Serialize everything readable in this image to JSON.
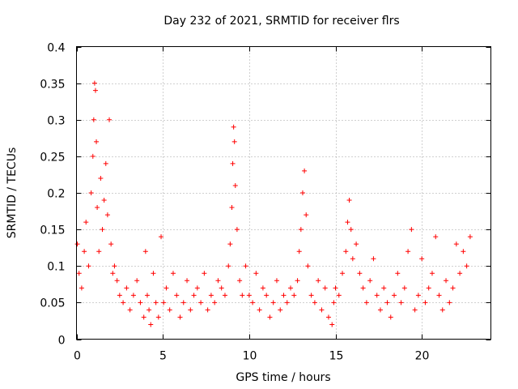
{
  "chart_data": {
    "type": "scatter",
    "title": "Day 232 of 2021, SRMTID for receiver flrs",
    "xlabel": "GPS time / hours",
    "ylabel": "SRMTID / TECUs",
    "xlim": [
      0,
      24
    ],
    "ylim": [
      0,
      0.4
    ],
    "x_ticks": [
      0,
      5,
      10,
      15,
      20
    ],
    "x_tick_labels": [
      "0",
      "5",
      "10",
      "15",
      "20"
    ],
    "y_ticks": [
      0,
      0.05,
      0.1,
      0.15,
      0.2,
      0.25,
      0.3,
      0.35,
      0.4
    ],
    "y_tick_labels": [
      "0",
      "0.05",
      "0.1",
      "0.15",
      "0.2",
      "0.25",
      "0.3",
      "0.35",
      "0.4"
    ],
    "grid": true,
    "marker": "+",
    "color": "#ff0000",
    "series": [
      {
        "name": "SRMTID",
        "x": [
          0.05,
          0.15,
          0.3,
          0.45,
          0.55,
          0.7,
          0.85,
          0.95,
          1.0,
          1.05,
          1.1,
          1.15,
          1.2,
          1.3,
          1.4,
          1.5,
          1.6,
          1.7,
          1.8,
          1.9,
          2.0,
          2.1,
          2.2,
          2.35,
          2.5,
          2.7,
          2.9,
          3.1,
          3.3,
          3.5,
          3.7,
          3.9,
          4.0,
          4.1,
          4.2,
          4.3,
          4.45,
          4.6,
          4.75,
          4.9,
          5.05,
          5.2,
          5.4,
          5.6,
          5.8,
          6.0,
          6.2,
          6.4,
          6.6,
          6.8,
          7.0,
          7.2,
          7.4,
          7.6,
          7.8,
          8.0,
          8.2,
          8.4,
          8.6,
          8.8,
          8.9,
          9.0,
          9.05,
          9.1,
          9.15,
          9.2,
          9.3,
          9.45,
          9.6,
          9.8,
          10.0,
          10.2,
          10.4,
          10.6,
          10.8,
          11.0,
          11.2,
          11.4,
          11.6,
          11.8,
          12.0,
          12.2,
          12.4,
          12.6,
          12.8,
          12.9,
          13.0,
          13.1,
          13.2,
          13.3,
          13.4,
          13.6,
          13.8,
          14.0,
          14.2,
          14.4,
          14.6,
          14.8,
          14.9,
          15.0,
          15.2,
          15.4,
          15.6,
          15.7,
          15.8,
          15.9,
          16.0,
          16.2,
          16.4,
          16.6,
          16.8,
          17.0,
          17.2,
          17.4,
          17.6,
          17.8,
          18.0,
          18.2,
          18.4,
          18.6,
          18.8,
          19.0,
          19.2,
          19.4,
          19.6,
          19.8,
          20.0,
          20.2,
          20.4,
          20.6,
          20.8,
          21.0,
          21.2,
          21.4,
          21.6,
          21.8,
          22.0,
          22.2,
          22.4,
          22.6,
          22.8
        ],
        "y": [
          0.13,
          0.09,
          0.07,
          0.12,
          0.16,
          0.1,
          0.2,
          0.25,
          0.3,
          0.35,
          0.34,
          0.27,
          0.18,
          0.12,
          0.22,
          0.15,
          0.19,
          0.24,
          0.17,
          0.3,
          0.13,
          0.09,
          0.1,
          0.08,
          0.06,
          0.05,
          0.07,
          0.04,
          0.06,
          0.08,
          0.05,
          0.03,
          0.12,
          0.06,
          0.04,
          0.02,
          0.09,
          0.05,
          0.03,
          0.14,
          0.05,
          0.07,
          0.04,
          0.09,
          0.06,
          0.03,
          0.05,
          0.08,
          0.04,
          0.06,
          0.07,
          0.05,
          0.09,
          0.04,
          0.06,
          0.05,
          0.08,
          0.07,
          0.06,
          0.1,
          0.13,
          0.18,
          0.24,
          0.29,
          0.27,
          0.21,
          0.15,
          0.08,
          0.06,
          0.1,
          0.06,
          0.05,
          0.09,
          0.04,
          0.07,
          0.06,
          0.03,
          0.05,
          0.08,
          0.04,
          0.06,
          0.05,
          0.07,
          0.06,
          0.08,
          0.12,
          0.15,
          0.2,
          0.23,
          0.17,
          0.1,
          0.06,
          0.05,
          0.08,
          0.04,
          0.07,
          0.03,
          0.02,
          0.05,
          0.07,
          0.06,
          0.09,
          0.12,
          0.16,
          0.19,
          0.15,
          0.11,
          0.13,
          0.09,
          0.07,
          0.05,
          0.08,
          0.11,
          0.06,
          0.04,
          0.07,
          0.05,
          0.03,
          0.06,
          0.09,
          0.05,
          0.07,
          0.12,
          0.15,
          0.04,
          0.06,
          0.11,
          0.05,
          0.07,
          0.09,
          0.14,
          0.06,
          0.04,
          0.08,
          0.05,
          0.07,
          0.13,
          0.09,
          0.12,
          0.1,
          0.14
        ]
      }
    ]
  }
}
